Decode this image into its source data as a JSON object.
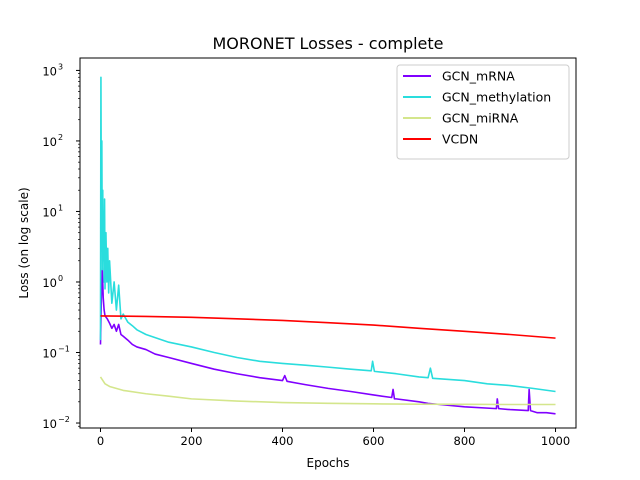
{
  "chart_data": {
    "type": "line",
    "title": "MORONET Losses - complete",
    "xlabel": "Epochs",
    "ylabel": "Loss (on log scale)",
    "yscale": "log",
    "xlim": [
      -45,
      1045
    ],
    "ylim": [
      0.0085,
      1500
    ],
    "x_ticks": [
      0,
      200,
      400,
      600,
      800,
      1000
    ],
    "x_tick_labels": [
      "0",
      "200",
      "400",
      "600",
      "800",
      "1000"
    ],
    "y_ticks": [
      0.01,
      0.1,
      1,
      10,
      100,
      1000
    ],
    "y_tick_labels": [
      "10",
      "10",
      "10",
      "10",
      "10",
      "10"
    ],
    "y_tick_exponents": [
      "−2",
      "−1",
      "0",
      "1",
      "2",
      "3"
    ],
    "grid": false,
    "legend_position": "upper right",
    "series": [
      {
        "name": "GCN_mRNA",
        "color": "#8000ff",
        "x": [
          0,
          2,
          4,
          6,
          8,
          10,
          15,
          20,
          25,
          30,
          35,
          40,
          45,
          50,
          60,
          70,
          80,
          100,
          120,
          150,
          200,
          250,
          300,
          350,
          400,
          405,
          410,
          450,
          500,
          550,
          600,
          640,
          643,
          646,
          650,
          700,
          720,
          800,
          870,
          872,
          875,
          900,
          940,
          942,
          945,
          960,
          980,
          1000
        ],
        "values": [
          0.13,
          0.6,
          1.6,
          0.6,
          0.4,
          0.33,
          0.3,
          0.26,
          0.22,
          0.25,
          0.2,
          0.25,
          0.18,
          0.17,
          0.15,
          0.13,
          0.12,
          0.11,
          0.095,
          0.085,
          0.07,
          0.058,
          0.05,
          0.044,
          0.04,
          0.047,
          0.039,
          0.035,
          0.031,
          0.028,
          0.025,
          0.023,
          0.03,
          0.022,
          0.022,
          0.02,
          0.019,
          0.017,
          0.016,
          0.022,
          0.016,
          0.0155,
          0.015,
          0.03,
          0.015,
          0.014,
          0.014,
          0.0135
        ]
      },
      {
        "name": "GCN_methylation",
        "color": "#2adddd",
        "x": [
          0,
          1,
          2,
          3,
          4,
          5,
          6,
          7,
          8,
          9,
          10,
          12,
          14,
          16,
          18,
          20,
          25,
          30,
          35,
          40,
          45,
          50,
          60,
          70,
          80,
          100,
          150,
          200,
          250,
          300,
          350,
          400,
          450,
          500,
          550,
          595,
          598,
          602,
          650,
          700,
          720,
          725,
          730,
          800,
          850,
          900,
          950,
          1000
        ],
        "values": [
          0.15,
          800,
          5,
          100,
          1.5,
          20,
          2,
          10,
          1,
          15,
          0.8,
          5,
          1,
          3,
          0.7,
          2,
          0.5,
          1,
          0.4,
          0.9,
          0.3,
          0.35,
          0.27,
          0.24,
          0.21,
          0.18,
          0.14,
          0.12,
          0.1,
          0.085,
          0.075,
          0.07,
          0.066,
          0.062,
          0.058,
          0.055,
          0.075,
          0.054,
          0.05,
          0.045,
          0.044,
          0.06,
          0.043,
          0.04,
          0.036,
          0.034,
          0.031,
          0.028
        ]
      },
      {
        "name": "GCN_miRNA",
        "color": "#d4e68c",
        "x": [
          0,
          10,
          20,
          50,
          100,
          150,
          200,
          300,
          400,
          500,
          600,
          700,
          800,
          900,
          1000
        ],
        "values": [
          0.045,
          0.036,
          0.033,
          0.029,
          0.026,
          0.024,
          0.022,
          0.0205,
          0.0195,
          0.019,
          0.0187,
          0.0185,
          0.0184,
          0.0183,
          0.0183
        ]
      },
      {
        "name": "VCDN",
        "color": "#ff0000",
        "x": [
          0,
          100,
          200,
          300,
          400,
          500,
          600,
          700,
          800,
          900,
          1000
        ],
        "values": [
          0.33,
          0.325,
          0.315,
          0.3,
          0.285,
          0.265,
          0.245,
          0.22,
          0.2,
          0.18,
          0.16
        ]
      }
    ]
  }
}
